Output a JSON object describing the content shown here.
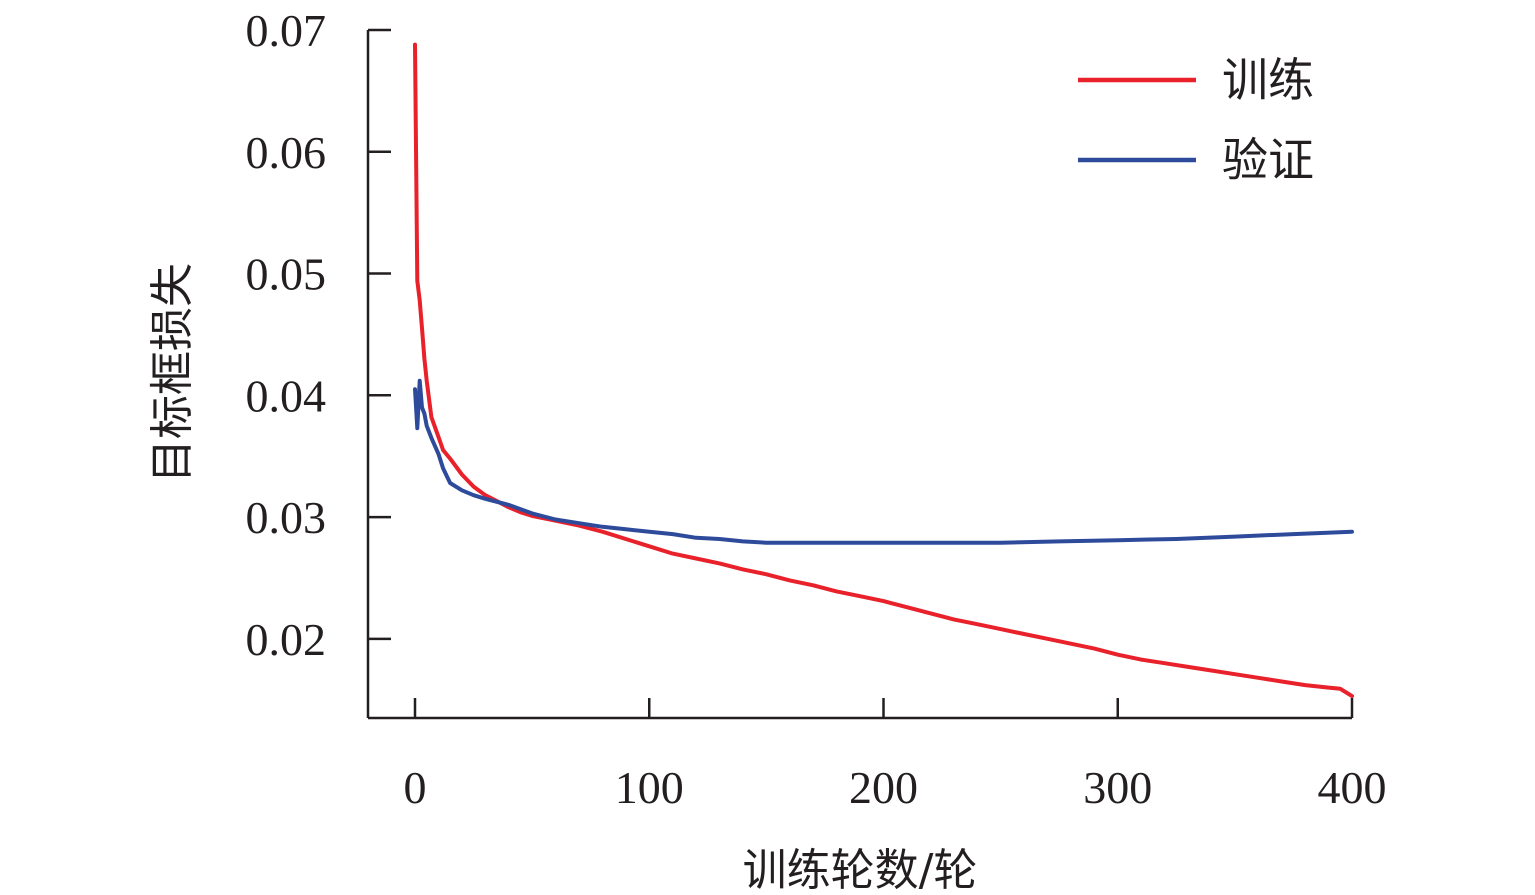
{
  "chart_data": {
    "type": "line",
    "title": "",
    "xlabel": "训练轮数/轮",
    "ylabel": "目标框损失",
    "xlim": [
      -20,
      400
    ],
    "ylim": [
      0.0135,
      0.07
    ],
    "x_ticks": [
      0,
      100,
      200,
      300,
      400
    ],
    "x_tick_labels": [
      "0",
      "100",
      "200",
      "300",
      "400"
    ],
    "y_ticks": [
      0.02,
      0.03,
      0.04,
      0.05,
      0.06,
      0.07
    ],
    "y_tick_labels": [
      "0.02",
      "0.03",
      "0.04",
      "0.05",
      "0.06",
      "0.07"
    ],
    "grid": false,
    "legend_position": "top-right",
    "series": [
      {
        "name": "训练",
        "color": "#e8212b",
        "x": [
          0,
          1,
          2,
          3,
          4,
          5,
          7,
          10,
          12,
          15,
          20,
          25,
          30,
          35,
          40,
          45,
          50,
          55,
          60,
          70,
          80,
          90,
          100,
          110,
          120,
          130,
          140,
          150,
          160,
          170,
          180,
          190,
          200,
          210,
          220,
          230,
          240,
          250,
          260,
          270,
          280,
          290,
          300,
          310,
          320,
          330,
          340,
          350,
          360,
          370,
          380,
          390,
          395,
          400
        ],
        "y": [
          0.0688,
          0.0494,
          0.0478,
          0.0455,
          0.043,
          0.0412,
          0.0382,
          0.0366,
          0.0355,
          0.0348,
          0.0335,
          0.0325,
          0.0318,
          0.0313,
          0.0308,
          0.0304,
          0.0301,
          0.0299,
          0.0297,
          0.0293,
          0.0288,
          0.0282,
          0.0276,
          0.027,
          0.0266,
          0.0262,
          0.0257,
          0.0253,
          0.0248,
          0.0244,
          0.0239,
          0.0235,
          0.0231,
          0.0226,
          0.0221,
          0.0216,
          0.0212,
          0.0208,
          0.0204,
          0.02,
          0.0196,
          0.0192,
          0.0187,
          0.0183,
          0.018,
          0.0177,
          0.0174,
          0.0171,
          0.0168,
          0.0165,
          0.0162,
          0.016,
          0.0159,
          0.0153
        ]
      },
      {
        "name": "验证",
        "color": "#2e4b9b",
        "x": [
          0,
          1,
          2,
          3,
          4,
          5,
          7,
          10,
          12,
          15,
          20,
          25,
          30,
          40,
          50,
          60,
          70,
          80,
          90,
          100,
          110,
          120,
          130,
          140,
          150,
          175,
          200,
          225,
          250,
          275,
          300,
          325,
          350,
          375,
          400
        ],
        "y": [
          0.0405,
          0.0373,
          0.0412,
          0.039,
          0.0385,
          0.0375,
          0.0365,
          0.0352,
          0.034,
          0.0328,
          0.0322,
          0.0318,
          0.0315,
          0.031,
          0.0303,
          0.0298,
          0.0295,
          0.0292,
          0.029,
          0.0288,
          0.0286,
          0.0283,
          0.0282,
          0.028,
          0.0279,
          0.0279,
          0.0279,
          0.0279,
          0.0279,
          0.028,
          0.0281,
          0.0282,
          0.0284,
          0.0286,
          0.0288
        ]
      }
    ]
  }
}
